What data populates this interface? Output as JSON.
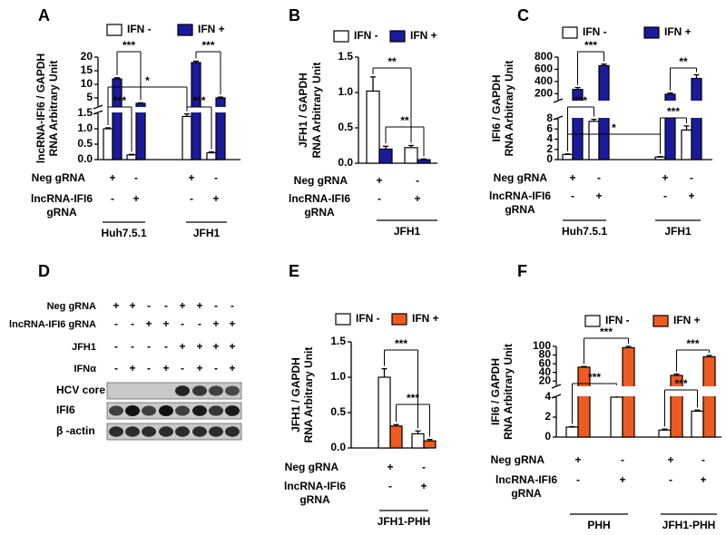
{
  "chart_data": [
    {
      "label": "A",
      "type": "bar",
      "y_label": [
        "lncRNA-IFI6 / GAPDH",
        "RNA Arbitrary Unit"
      ],
      "ylim": [
        0,
        1.5
      ],
      "yticks": [
        {
          "value": 0,
          "label": "0.0"
        },
        0.5,
        {
          "value": 1,
          "label": "1.0"
        },
        1.5
      ],
      "ylim_upper": [
        2,
        20
      ],
      "yticks_upper": [
        5,
        10,
        15,
        20
      ],
      "series": [
        {
          "name": "IFN -",
          "color": "#ffffff",
          "values": [
            1.0,
            0.15,
            1.4,
            0.22
          ],
          "errors": [
            0.03,
            0.02,
            0.08,
            0.03
          ]
        },
        {
          "name": "IFN +",
          "color": "#1a1a9e",
          "values": [
            12,
            3.0,
            18,
            5.0
          ],
          "errors": [
            0.4,
            0.2,
            0.5,
            0.3
          ]
        }
      ],
      "rows": [
        {
          "label": [
            "Neg gRNA"
          ],
          "signs": [
            "+",
            "-",
            "+",
            "-"
          ]
        },
        {
          "label": [
            "lncRNA-IFI6",
            "gRNA"
          ],
          "signs": [
            "-",
            "+",
            "-",
            "+"
          ]
        }
      ],
      "groups": [
        "Huh7.5.1",
        "JFH1"
      ],
      "annotations": [
        "***",
        "***",
        "*",
        "***",
        "***"
      ]
    },
    {
      "label": "B",
      "type": "bar",
      "y_label": [
        "JFH1 / GAPDH",
        "RNA Arbitrary Unit"
      ],
      "ylim": [
        0,
        1.5
      ],
      "yticks": [
        {
          "value": 0,
          "label": "0.0"
        },
        0.5,
        {
          "value": 1,
          "label": "1.0"
        },
        1.5
      ],
      "series": [
        {
          "name": "IFN -",
          "color": "#ffffff",
          "values": [
            1.02,
            0.22
          ],
          "errors": [
            0.2,
            0.03
          ]
        },
        {
          "name": "IFN +",
          "color": "#1a1a9e",
          "values": [
            0.2,
            0.05
          ],
          "errors": [
            0.04,
            0.01
          ]
        }
      ],
      "rows": [
        {
          "label": [
            "Neg gRNA"
          ],
          "signs": [
            "+",
            "-"
          ]
        },
        {
          "label": [
            "lncRNA-IFI6",
            "gRNA"
          ],
          "signs": [
            "-",
            "+"
          ]
        }
      ],
      "groups": [
        "JFH1"
      ],
      "annotations": [
        "**",
        "**"
      ]
    },
    {
      "label": "C",
      "type": "bar",
      "y_label": [
        "IFI6 / GAPDH",
        "RNA Arbitrary Unit"
      ],
      "ylim": [
        0,
        8
      ],
      "yticks": [
        0,
        2,
        4,
        6,
        8
      ],
      "ylim_upper": [
        100,
        800
      ],
      "yticks_upper": [
        200,
        400,
        600,
        800
      ],
      "series": [
        {
          "name": "IFN -",
          "color": "#ffffff",
          "values": [
            1.0,
            7.5,
            0.5,
            5.8
          ],
          "errors": [
            0.1,
            0.4,
            0.1,
            0.8
          ]
        },
        {
          "name": "IFN +",
          "color": "#1a1a9e",
          "values": [
            270,
            660,
            190,
            450
          ],
          "errors": [
            30,
            25,
            20,
            60
          ]
        }
      ],
      "rows": [
        {
          "label": [
            "Neg gRNA"
          ],
          "signs": [
            "+",
            "-",
            "+",
            "-"
          ]
        },
        {
          "label": [
            "lncRNA-IFI6",
            "gRNA"
          ],
          "signs": [
            "-",
            "+",
            "-",
            "+"
          ]
        }
      ],
      "groups": [
        "Huh7.5.1",
        "JFH1"
      ],
      "annotations": [
        "***",
        "***",
        "*",
        "**",
        "***"
      ]
    },
    {
      "label": "E",
      "type": "bar",
      "y_label": [
        "JFH1 / GAPDH",
        "RNA Arbitrary Unit"
      ],
      "ylim": [
        0,
        1.5
      ],
      "yticks": [
        {
          "value": 0,
          "label": "0.0"
        },
        0.5,
        {
          "value": 1,
          "label": "1.0"
        },
        1.5
      ],
      "series": [
        {
          "name": "IFN -",
          "color": "#ffffff",
          "values": [
            1.0,
            0.2
          ],
          "errors": [
            0.12,
            0.04
          ]
        },
        {
          "name": "IFN +",
          "color": "#f05a1e",
          "values": [
            0.31,
            0.1
          ],
          "errors": [
            0.02,
            0.02
          ]
        }
      ],
      "rows": [
        {
          "label": [
            "Neg gRNA"
          ],
          "signs": [
            "+",
            "-"
          ]
        },
        {
          "label": [
            "lncRNA-IFI6",
            "gRNA"
          ],
          "signs": [
            "-",
            "+"
          ]
        }
      ],
      "groups": [
        "JFH1-PHH"
      ],
      "annotations": [
        "***",
        "***"
      ]
    },
    {
      "label": "F",
      "type": "bar",
      "y_label": [
        "IFI6 / GAPDH",
        "RNA Arbitrary Unit"
      ],
      "ylim": [
        0,
        4
      ],
      "yticks": [
        0,
        2,
        4
      ],
      "ylim_upper": [
        10,
        100
      ],
      "yticks_upper": [
        20,
        40,
        60,
        80,
        100
      ],
      "series": [
        {
          "name": "IFN -",
          "color": "#ffffff",
          "values": [
            1.0,
            4.0,
            0.7,
            2.6
          ],
          "errors": [
            0.05,
            0.4,
            0.1,
            0.1
          ]
        },
        {
          "name": "IFN +",
          "color": "#f05a1e",
          "values": [
            52,
            97,
            33,
            76
          ],
          "errors": [
            1.5,
            3,
            3,
            3
          ]
        }
      ],
      "rows": [
        {
          "label": [
            "Neg gRNA"
          ],
          "signs": [
            "+",
            "-",
            "+",
            "-"
          ]
        },
        {
          "label": [
            "lncRNA-IFI6",
            "gRNA"
          ],
          "signs": [
            "-",
            "+",
            "-",
            "+"
          ]
        }
      ],
      "groups": [
        "PHH",
        "JFH1-PHH"
      ],
      "annotations": [
        "***",
        "***",
        "***",
        "***"
      ]
    }
  ],
  "blot": {
    "label": "D",
    "rows": [
      {
        "label": "Neg gRNA",
        "signs": [
          "+",
          "+",
          "-",
          "-",
          "+",
          "+",
          "-",
          "-"
        ]
      },
      {
        "label": "lncRNA-IFI6 gRNA",
        "signs": [
          "-",
          "-",
          "+",
          "+",
          "-",
          "-",
          "+",
          "+"
        ]
      },
      {
        "label": "JFH1",
        "signs": [
          "-",
          "-",
          "-",
          "-",
          "+",
          "+",
          "+",
          "+"
        ]
      },
      {
        "label": "IFNα",
        "signs": [
          "-",
          "+",
          "-",
          "+",
          "-",
          "+",
          "-",
          "+"
        ]
      }
    ],
    "bands": [
      "HCV core",
      "IFI6",
      "β -actin"
    ]
  }
}
